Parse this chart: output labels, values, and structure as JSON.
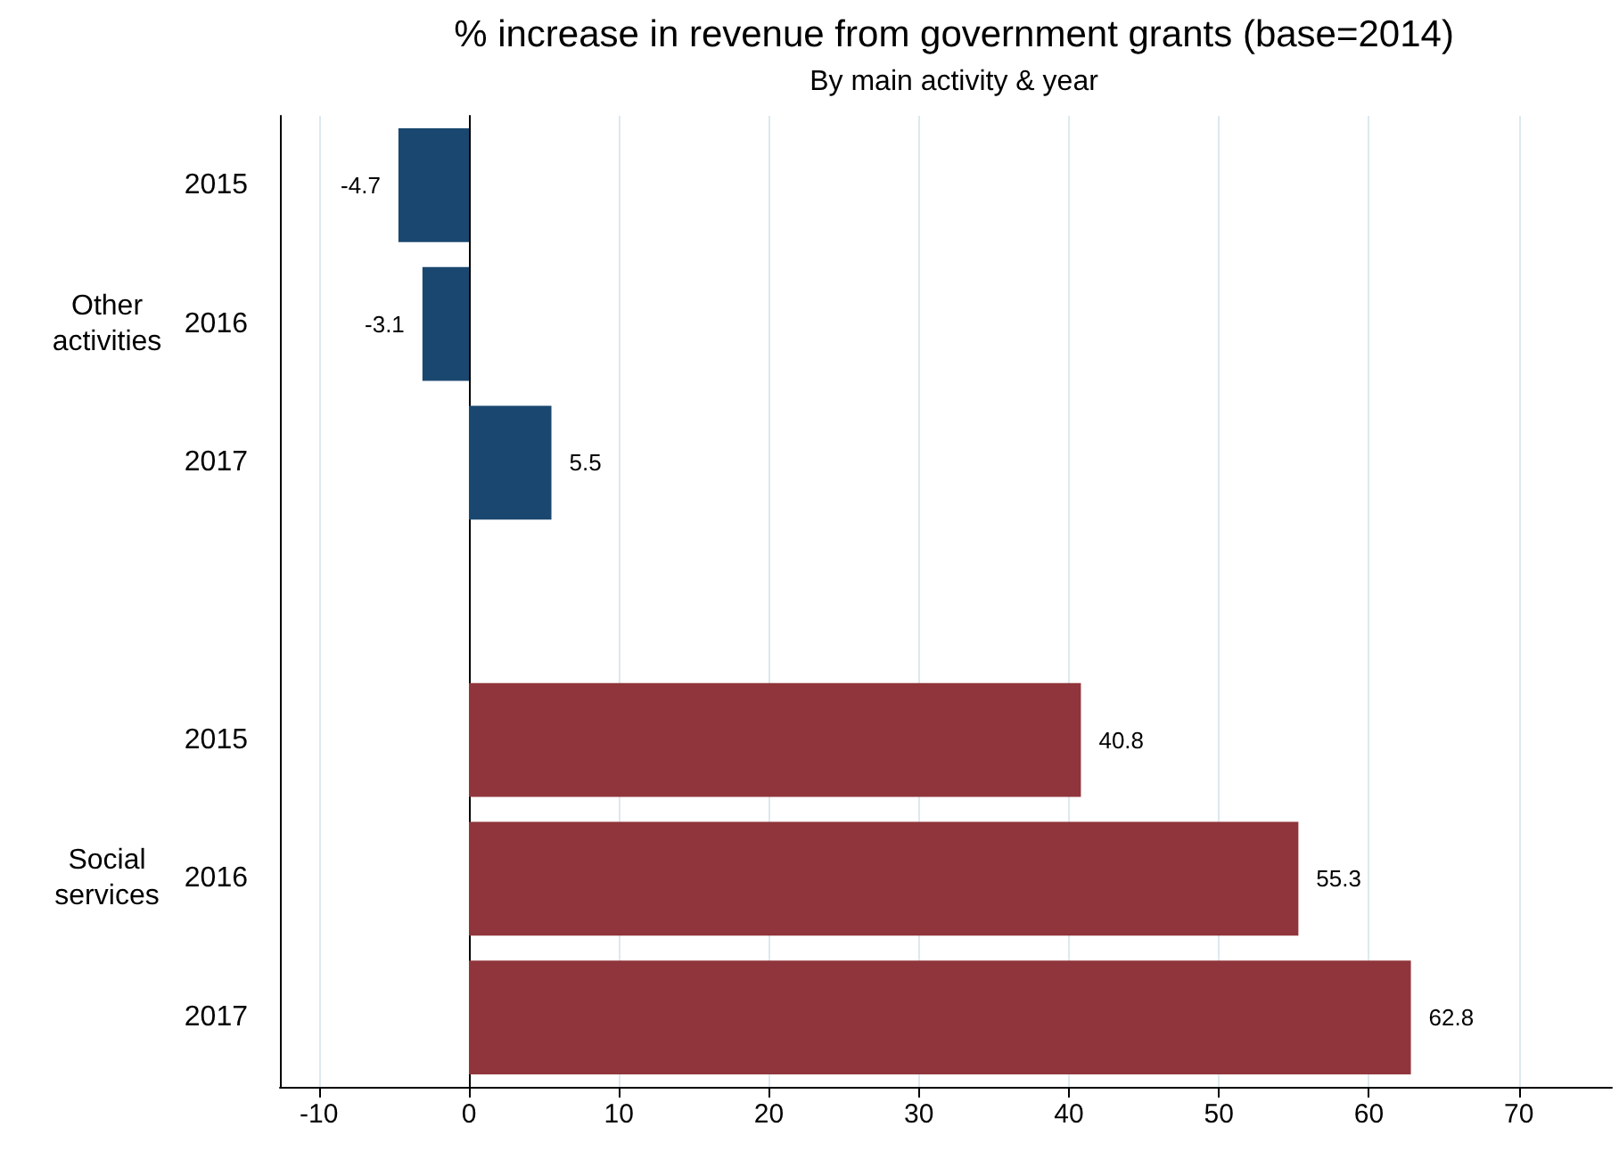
{
  "chart_data": {
    "type": "bar",
    "orientation": "horizontal",
    "title": "% increase in revenue from government grants (base=2014)",
    "subtitle": "By main activity & year",
    "categories": [
      "2015",
      "2016",
      "2017",
      null,
      "2015",
      "2016",
      "2017"
    ],
    "series": [
      {
        "color": "#1a476f",
        "values": [
          -4.7,
          -3.1,
          5.5,
          null,
          null,
          null,
          null
        ]
      },
      {
        "color": "#90353b",
        "values": [
          null,
          null,
          null,
          null,
          40.8,
          55.3,
          62.8
        ]
      }
    ],
    "annotations": [
      "Other\nactivities",
      "Social\nservices"
    ],
    "xlim": [
      -12.6,
      76.2
    ],
    "xticks": [
      -10,
      0,
      10,
      20,
      30,
      40,
      50,
      60,
      70
    ],
    "grid": "x",
    "data_labels": true
  }
}
